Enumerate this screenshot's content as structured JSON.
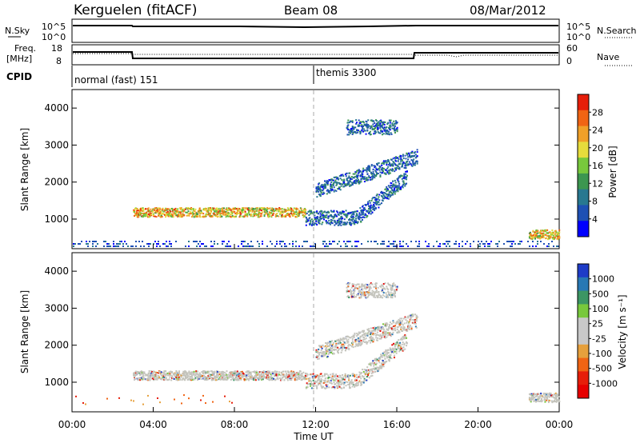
{
  "header": {
    "station": "Kerguelen (fitACF)",
    "beam": "Beam 08",
    "date": "08/Mar/2012"
  },
  "noise_panel": {
    "left_label": "N.Sky",
    "right_label": "N.Search",
    "left_ticks": [
      "10^5",
      "10^0"
    ],
    "right_ticks": [
      "10^5",
      "10^0"
    ]
  },
  "freq_panel": {
    "left_label_line1": "Freq.",
    "left_label_line2": "[MHz]",
    "right_label": "Nave",
    "left_ticks": [
      "18",
      "8"
    ],
    "right_ticks": [
      "60",
      "0"
    ]
  },
  "cpid_panel": {
    "label": "CPID",
    "programs": [
      {
        "name": "normal (fast) 151",
        "start_hour": 0
      },
      {
        "name": "themis 3300",
        "start_hour": 12
      }
    ]
  },
  "colors": {
    "power_scale": [
      "#0000ff",
      "#1e50b4",
      "#287890",
      "#3c9650",
      "#78c83c",
      "#e6dc3c",
      "#f0a028",
      "#f06414",
      "#e61e0a"
    ],
    "velocity_scale": [
      "#1e3cc8",
      "#2878b4",
      "#3c9664",
      "#78c83c",
      "#c8c8c8",
      "#c8c8c8",
      "#e6a03c",
      "#f06414",
      "#e61e0a",
      "#e60000"
    ],
    "echo_gray": "#c4c4bc"
  },
  "chart_data": [
    {
      "type": "heatmap",
      "panel": "power",
      "ylabel": "Slant Range [km]",
      "yticks": [
        "1000",
        "2000",
        "3000",
        "4000"
      ],
      "ylim": [
        200,
        4500
      ],
      "xlim_hours": [
        0,
        24
      ],
      "colorbar_label": "Power [dB]",
      "colorbar_ticks": [
        "4",
        "8",
        "12",
        "16",
        "20",
        "24",
        "28"
      ],
      "echo_bands": [
        {
          "t_start": 3.0,
          "t_end": 11.5,
          "range_center_km": 1200,
          "level": "high"
        },
        {
          "t_start": 11.5,
          "t_end": 16.5,
          "range_center_km": 1100,
          "level": "medium"
        },
        {
          "t_start": 12.0,
          "t_end": 17.0,
          "range_center_km": 2500,
          "level": "low"
        },
        {
          "t_start": 13.5,
          "t_end": 16.0,
          "range_center_km": 3500,
          "level": "low"
        },
        {
          "t_start": 22.5,
          "t_end": 24.0,
          "range_center_km": 600,
          "level": "high"
        }
      ]
    },
    {
      "type": "heatmap",
      "panel": "velocity",
      "ylabel": "Slant Range [km]",
      "yticks": [
        "1000",
        "2000",
        "3000",
        "4000"
      ],
      "ylim": [
        200,
        4500
      ],
      "xlim_hours": [
        0,
        24
      ],
      "xlabel": "Time UT",
      "xticks": [
        "00:00",
        "04:00",
        "08:00",
        "12:00",
        "16:00",
        "20:00",
        "00:00"
      ],
      "colorbar_label": "Velocity [m s⁻¹]",
      "colorbar_ticks": [
        "1000",
        "500",
        "100",
        "25",
        "-25",
        "-100",
        "-500",
        "-1000"
      ],
      "marker_hour": 12
    }
  ]
}
